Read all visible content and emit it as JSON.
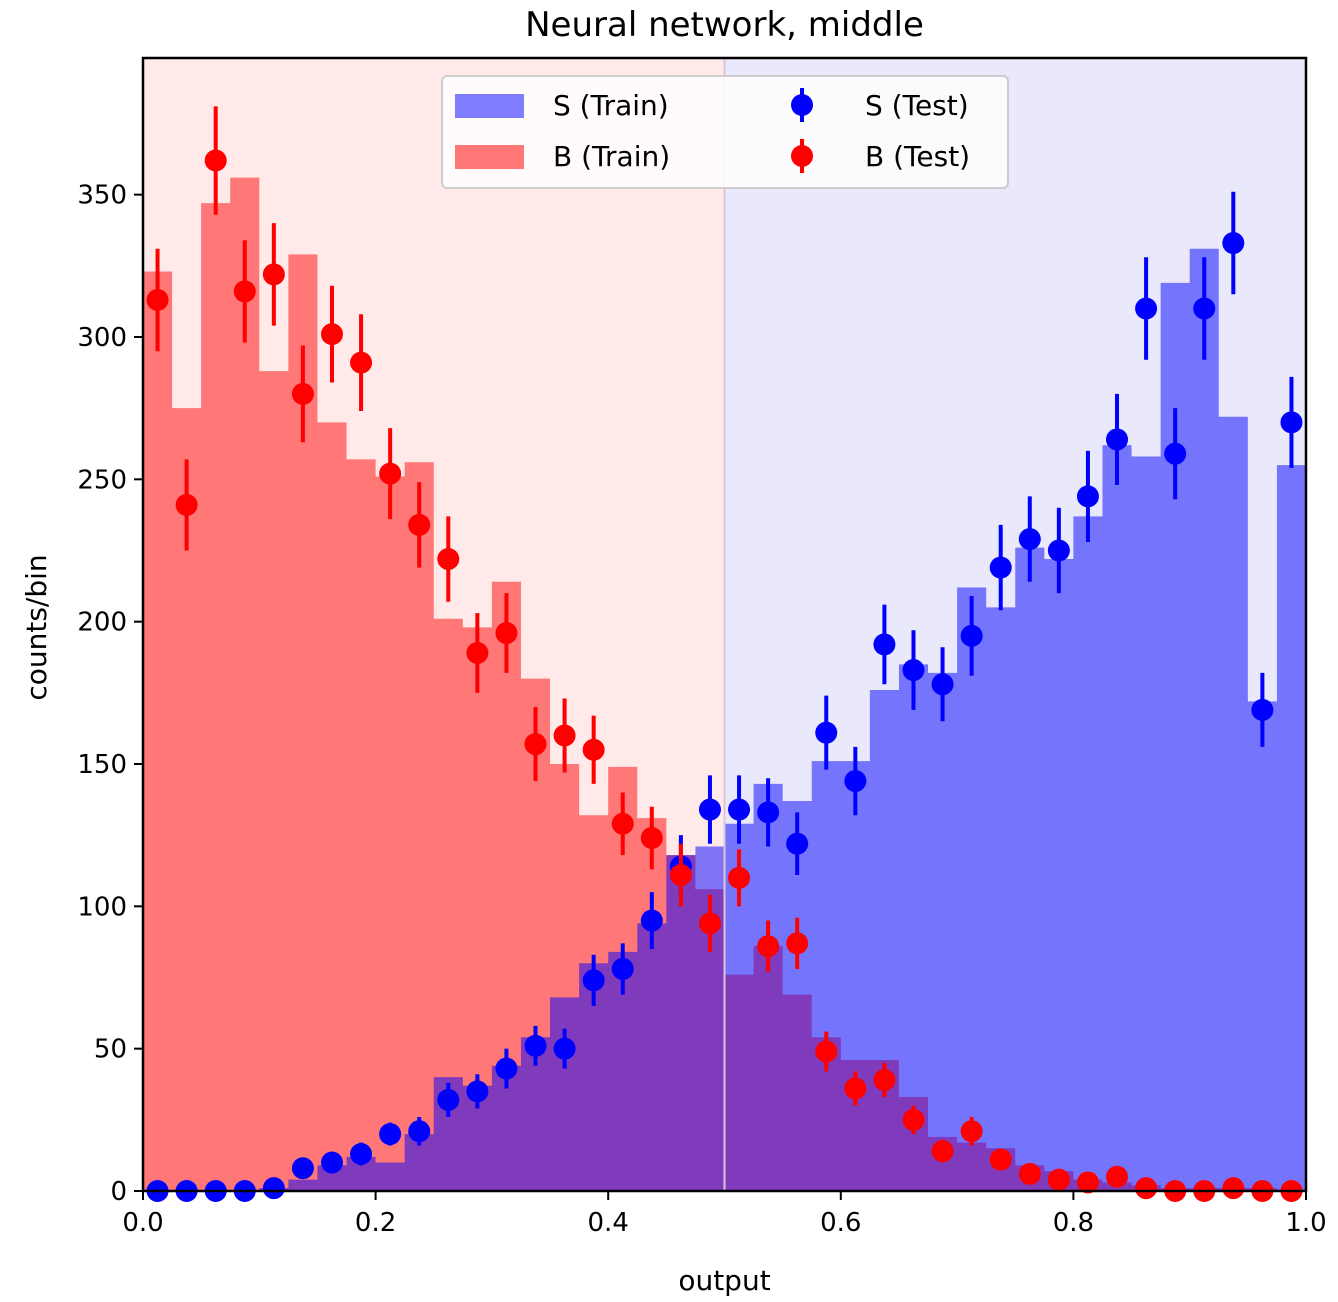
{
  "chart_data": {
    "type": "histogram",
    "title": "Neural network, middle",
    "xlabel": "output",
    "ylabel": "counts/bin",
    "xlim": [
      0.0,
      1.0
    ],
    "ylim": [
      0,
      398
    ],
    "x_ticks": [
      "0.0",
      "0.2",
      "0.4",
      "0.6",
      "0.8",
      "1.0"
    ],
    "y_ticks": [
      "0",
      "50",
      "100",
      "150",
      "200",
      "250",
      "300",
      "350"
    ],
    "cut_value": 0.5,
    "regions": [
      {
        "name": "background region",
        "x_range": [
          0.0,
          0.5
        ],
        "color": "#ffe9e9"
      },
      {
        "name": "signal region",
        "x_range": [
          0.5,
          1.0
        ],
        "color": "#e9e9fb"
      }
    ],
    "bin_edges": [
      0.0,
      0.025,
      0.05,
      0.075,
      0.1,
      0.125,
      0.15,
      0.175,
      0.2,
      0.225,
      0.25,
      0.275,
      0.3,
      0.325,
      0.35,
      0.375,
      0.4,
      0.425,
      0.45,
      0.475,
      0.5,
      0.525,
      0.55,
      0.575,
      0.6,
      0.625,
      0.65,
      0.675,
      0.7,
      0.725,
      0.75,
      0.775,
      0.8,
      0.825,
      0.85,
      0.875,
      0.9,
      0.925,
      0.95,
      0.975,
      1.0
    ],
    "histograms": [
      {
        "name": "B (Train)",
        "color": "#ff7777",
        "values": [
          323,
          275,
          347,
          356,
          288,
          329,
          270,
          257,
          251,
          256,
          201,
          198,
          214,
          180,
          150,
          132,
          149,
          131,
          118,
          106,
          76,
          86,
          69,
          54,
          46,
          46,
          33,
          19,
          17,
          15,
          9,
          7,
          4,
          3,
          2,
          1,
          1,
          1,
          1,
          0
        ]
      },
      {
        "name": "S (Train)",
        "color": "#7777ff",
        "values": [
          0,
          0,
          0,
          0,
          1,
          4,
          9,
          12,
          10,
          20,
          40,
          37,
          44,
          54,
          68,
          80,
          84,
          94,
          118,
          121,
          129,
          143,
          137,
          151,
          151,
          176,
          185,
          182,
          212,
          205,
          226,
          222,
          237,
          262,
          258,
          319,
          331,
          272,
          172,
          255
        ]
      }
    ],
    "series": [
      {
        "name": "S (Test)",
        "color": "#0000ff",
        "x": [
          0.0125,
          0.0375,
          0.0625,
          0.0875,
          0.1125,
          0.1375,
          0.1625,
          0.1875,
          0.2125,
          0.2375,
          0.2625,
          0.2875,
          0.3125,
          0.3375,
          0.3625,
          0.3875,
          0.4125,
          0.4375,
          0.4625,
          0.4875,
          0.5125,
          0.5375,
          0.5625,
          0.5875,
          0.6125,
          0.6375,
          0.6625,
          0.6875,
          0.7125,
          0.7375,
          0.7625,
          0.7875,
          0.8125,
          0.8375,
          0.8625,
          0.8875,
          0.9125,
          0.9375,
          0.9625,
          0.9875
        ],
        "values": [
          0,
          0,
          0,
          0,
          1,
          8,
          10,
          13,
          20,
          21,
          32,
          35,
          43,
          51,
          50,
          74,
          78,
          95,
          114,
          134,
          134,
          133,
          122,
          161,
          144,
          192,
          183,
          178,
          195,
          219,
          229,
          225,
          244,
          264,
          310,
          259,
          310,
          333,
          169,
          270
        ],
        "errors": [
          0,
          0,
          0,
          0,
          1,
          3,
          3,
          4,
          4,
          5,
          6,
          6,
          7,
          7,
          7,
          9,
          9,
          10,
          11,
          12,
          12,
          12,
          11,
          13,
          12,
          14,
          14,
          13,
          14,
          15,
          15,
          15,
          16,
          16,
          18,
          16,
          18,
          18,
          13,
          16
        ]
      },
      {
        "name": "B (Test)",
        "color": "#ff0000",
        "x": [
          0.0125,
          0.0375,
          0.0625,
          0.0875,
          0.1125,
          0.1375,
          0.1625,
          0.1875,
          0.2125,
          0.2375,
          0.2625,
          0.2875,
          0.3125,
          0.3375,
          0.3625,
          0.3875,
          0.4125,
          0.4375,
          0.4625,
          0.4875,
          0.5125,
          0.5375,
          0.5625,
          0.5875,
          0.6125,
          0.6375,
          0.6625,
          0.6875,
          0.7125,
          0.7375,
          0.7625,
          0.7875,
          0.8125,
          0.8375,
          0.8625,
          0.8875,
          0.9125,
          0.9375,
          0.9625,
          0.9875
        ],
        "values": [
          313,
          241,
          362,
          316,
          322,
          280,
          301,
          291,
          252,
          234,
          222,
          189,
          196,
          157,
          160,
          155,
          129,
          124,
          111,
          94,
          110,
          86,
          87,
          49,
          36,
          39,
          25,
          14,
          21,
          11,
          6,
          4,
          3,
          5,
          1,
          0,
          0,
          1,
          0,
          0
        ],
        "errors": [
          18,
          16,
          19,
          18,
          18,
          17,
          17,
          17,
          16,
          15,
          15,
          14,
          14,
          13,
          13,
          12,
          11,
          11,
          11,
          10,
          10,
          9,
          9,
          7,
          6,
          6,
          5,
          4,
          5,
          3,
          2,
          2,
          2,
          2,
          1,
          0,
          0,
          1,
          0,
          0
        ]
      }
    ],
    "legend": {
      "position": "top-center",
      "entries": [
        {
          "label": "S (Train)",
          "kind": "patch",
          "color": "#7777ff"
        },
        {
          "label": "S (Test)",
          "kind": "errorbar",
          "color": "#0000ff"
        },
        {
          "label": "B (Train)",
          "kind": "patch",
          "color": "#ff7777"
        },
        {
          "label": "B (Test)",
          "kind": "errorbar",
          "color": "#ff0000"
        }
      ]
    }
  }
}
